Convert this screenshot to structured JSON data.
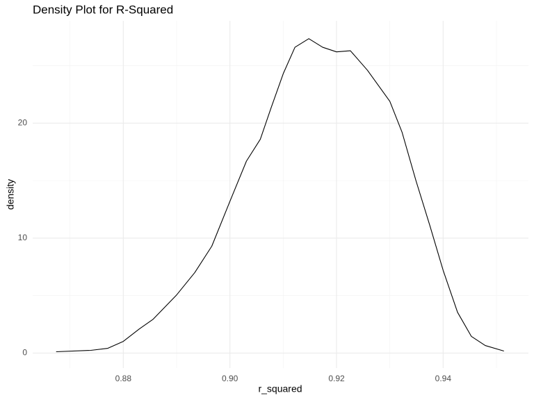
{
  "chart_data": {
    "type": "line",
    "title": "Density Plot for R-Squared",
    "x_label": "r_squared",
    "y_label": "density",
    "x": [
      0.8674,
      0.8739,
      0.8771,
      0.88,
      0.883,
      0.8856,
      0.89,
      0.8934,
      0.8966,
      0.9,
      0.9031,
      0.9057,
      0.9077,
      0.91,
      0.9122,
      0.9148,
      0.9174,
      0.92,
      0.9226,
      0.9258,
      0.93,
      0.9323,
      0.9349,
      0.9375,
      0.94,
      0.9427,
      0.9453,
      0.9479,
      0.9514
    ],
    "series": [
      {
        "name": "density",
        "color": "#000000",
        "values": [
          0.12,
          0.24,
          0.42,
          1.02,
          2.1,
          2.95,
          5.06,
          7.0,
          9.3,
          13.2,
          16.7,
          18.6,
          21.3,
          24.3,
          26.6,
          27.35,
          26.6,
          26.2,
          26.3,
          24.6,
          21.9,
          19.2,
          15.0,
          11.1,
          7.2,
          3.55,
          1.45,
          0.66,
          0.18
        ]
      }
    ],
    "xlim": [
      0.863,
      0.956
    ],
    "ylim": [
      -1.3,
      28.9
    ],
    "xticks": [
      0.88,
      {
        "value": 0.9,
        "label": "0.90"
      },
      0.92,
      0.94
    ],
    "yticks": [
      0,
      10,
      20
    ],
    "x_minor_grid": [
      0.87,
      0.89,
      0.91,
      0.93,
      0.95
    ],
    "y_minor_grid": [
      5,
      15,
      25
    ],
    "grid": true
  }
}
